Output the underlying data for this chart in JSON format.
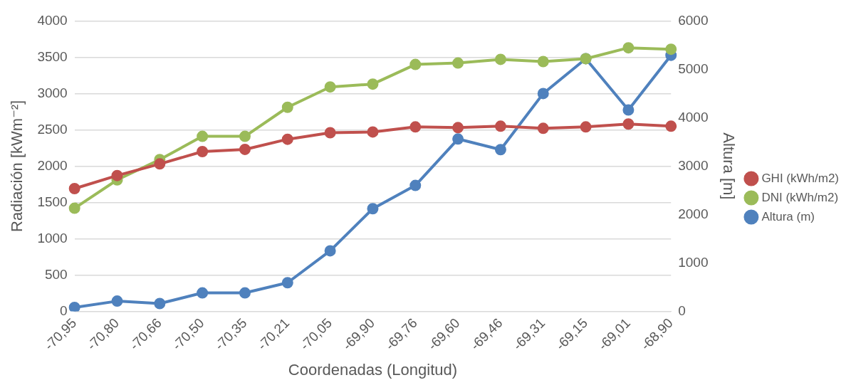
{
  "chart_data": {
    "type": "line",
    "xlabel": "Coordenadas (Longitud)",
    "ylabel": "Radiación [kWm⁻²]",
    "y2label": "Altura [m]",
    "categories": [
      "-70,95",
      "-70,80",
      "-70,66",
      "-70,50",
      "-70,35",
      "-70,21",
      "-70,05",
      "-69,90",
      "-69,76",
      "-69,60",
      "-69,46",
      "-69,31",
      "-69,15",
      "-69,01",
      "-68,90"
    ],
    "series": [
      {
        "name": "GHI (kWh/m2)",
        "color": "#c0504d",
        "values": [
          1690,
          1870,
          2030,
          2200,
          2230,
          2370,
          2460,
          2470,
          2540,
          2530,
          2550,
          2520,
          2540,
          2580,
          2550
        ]
      },
      {
        "name": "DNI (kWh/m2)",
        "color": "#9bbb59",
        "values": [
          1420,
          1810,
          2090,
          2410,
          2410,
          2810,
          3090,
          3130,
          3400,
          3420,
          3470,
          3440,
          3480,
          3630,
          3610
        ]
      },
      {
        "name": "Altura (m)",
        "color": "#4f81bd",
        "axis": "y2",
        "values": [
          80,
          210,
          160,
          380,
          380,
          590,
          1250,
          2120,
          2600,
          3560,
          3340,
          4500,
          5220,
          4160,
          5290
        ]
      }
    ],
    "ylim": [
      0,
      4000
    ],
    "yticks": [
      0,
      500,
      1000,
      1500,
      2000,
      2500,
      3000,
      3500,
      4000
    ],
    "y2lim": [
      0,
      6000
    ],
    "y2ticks": [
      0,
      1000,
      2000,
      3000,
      4000,
      5000,
      6000
    ],
    "grid": "y",
    "legend": "right",
    "marker": "circle",
    "line_style": "solid"
  }
}
